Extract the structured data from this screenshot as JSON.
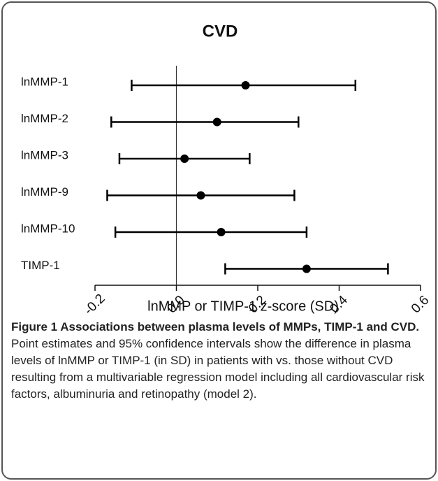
{
  "chart_data": {
    "type": "forest",
    "title": "CVD",
    "categories": [
      "lnMMP-1",
      "lnMMP-2",
      "lnMMP-3",
      "lnMMP-9",
      "lnMMP-10",
      "TIMP-1"
    ],
    "values": [
      0.17,
      0.1,
      0.02,
      0.06,
      0.11,
      0.32
    ],
    "lower": [
      -0.11,
      -0.16,
      -0.14,
      -0.17,
      -0.15,
      0.12
    ],
    "upper": [
      0.44,
      0.3,
      0.18,
      0.29,
      0.32,
      0.52
    ],
    "color": "#000000",
    "x_label": "lnMMP or TIMP-1 z-score (SD)",
    "xlim": [
      -0.2,
      0.6
    ],
    "xticks": [
      -0.2,
      {
        "value": 0,
        "label": "0.0"
      },
      0.2,
      0.4,
      0.6
    ]
  },
  "caption": {
    "title": "Figure 1 Associations between plasma levels of MMPs, TIMP-1 and CVD.",
    "text": "Point estimates and 95% confidence intervals show the difference in plasma levels of lnMMP or TIMP-1 (in SD) in patients with vs. those without CVD resulting from a multivariable regression model including all cardiovascular risk factors, albuminuria and retinopathy (model 2)."
  }
}
